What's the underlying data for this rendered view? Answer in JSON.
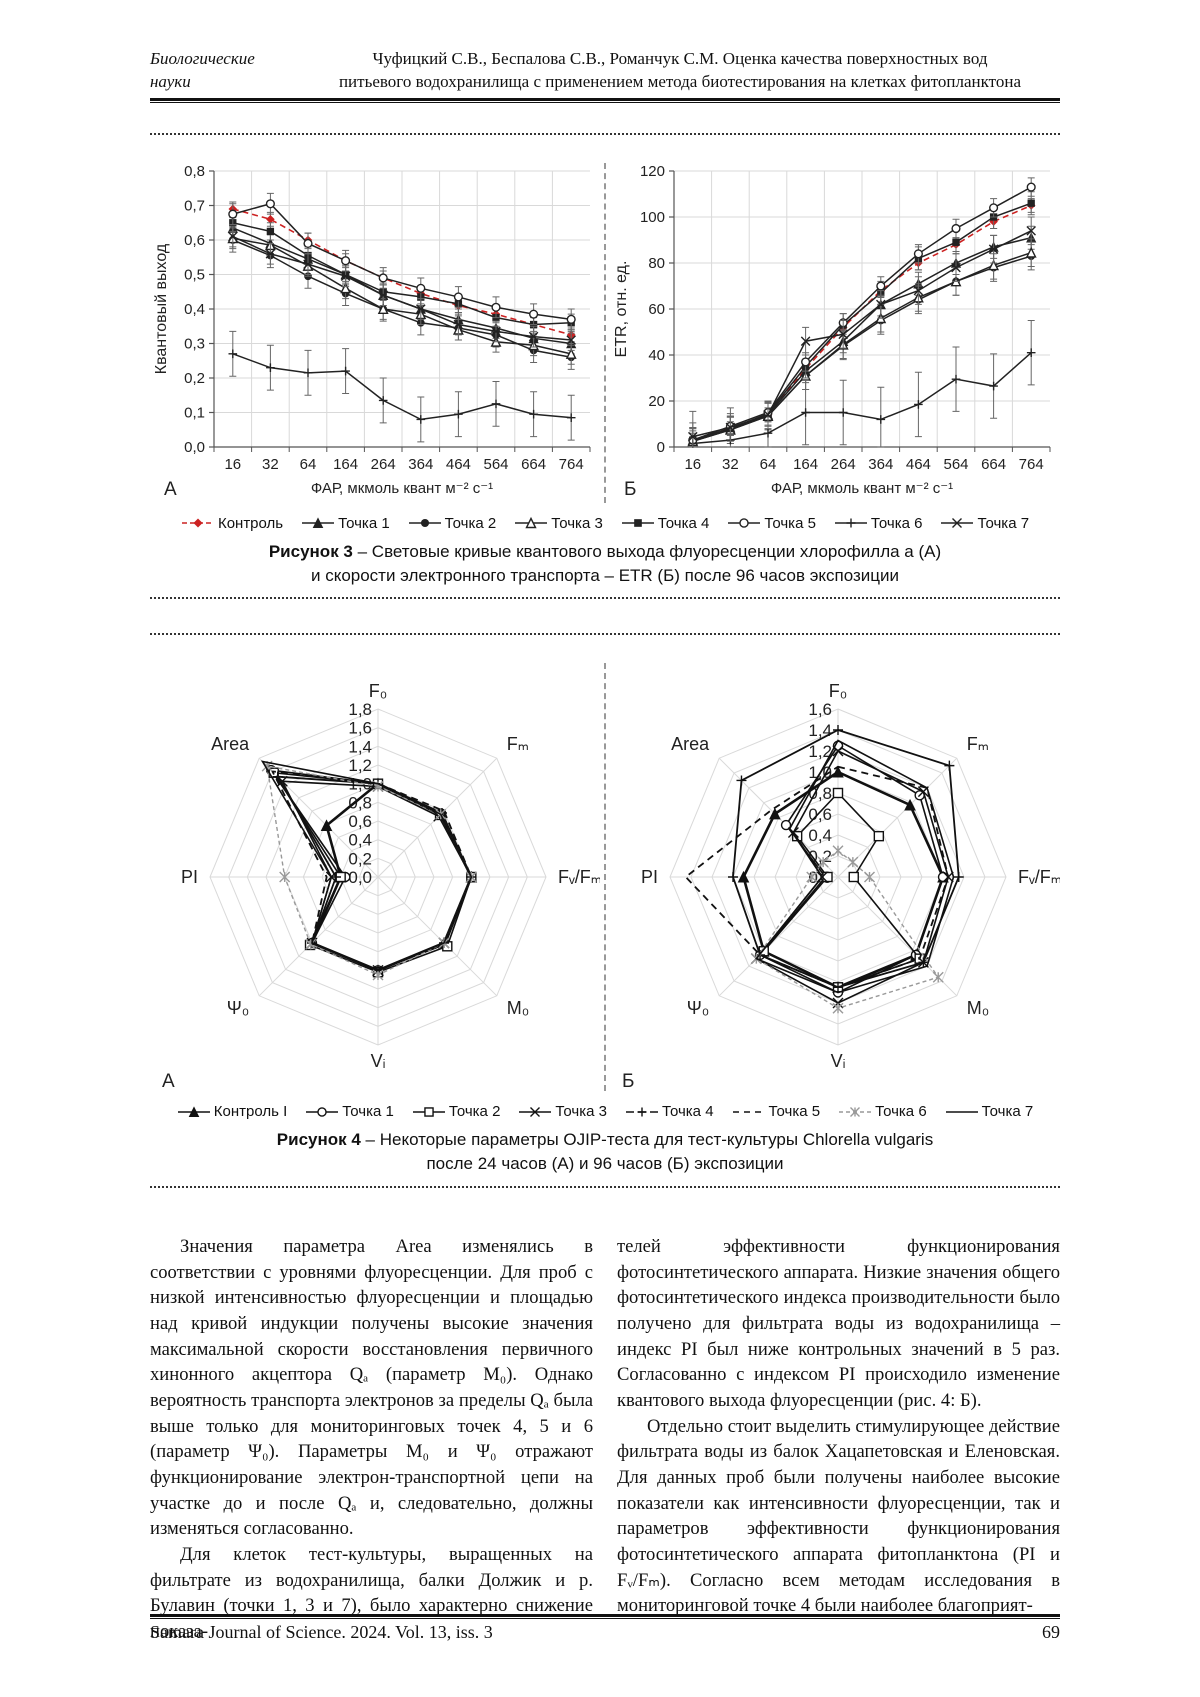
{
  "header": {
    "section_line1": "Биологические",
    "section_line2": "науки",
    "center_line1": "Чуфицкий С.В., Беспалова С.В., Романчук С.М. Оценка качества поверхностных вод",
    "center_line2": "питьевого водохранилища с применением метода биотестирования на клетках фитопланктона"
  },
  "colors": {
    "control_red": "#cc2222",
    "series_black": "#222222",
    "series_gray": "#999999",
    "grid": "#d9d9d9",
    "axis": "#808080"
  },
  "chart_data": [
    {
      "id": "fig3A",
      "type": "line",
      "panel_label": "А",
      "ylabel": "Квантовый выход",
      "xlabel": "ФАР, мкмоль квант м⁻² с⁻¹",
      "categories": [
        "16",
        "32",
        "64",
        "164",
        "264",
        "364",
        "464",
        "564",
        "664",
        "764"
      ],
      "ylim": [
        0,
        0.8
      ],
      "ytick_step": 0.1,
      "ytick_labels": [
        "0,0",
        "0,1",
        "0,2",
        "0,3",
        "0,4",
        "0,5",
        "0,6",
        "0,7",
        "0,8"
      ],
      "grid": true,
      "series": [
        {
          "name": "Контроль",
          "marker": "diamond-filled",
          "color": "#cc2222",
          "dash": "6 4",
          "width": 1.6,
          "err": 0.02,
          "values": [
            0.69,
            0.66,
            0.6,
            0.54,
            0.49,
            0.445,
            0.41,
            0.385,
            0.355,
            0.325
          ]
        },
        {
          "name": "Точка 1",
          "marker": "triangle-filled",
          "color": "#222222",
          "dash": "",
          "width": 1.5,
          "err": 0.03,
          "values": [
            0.635,
            0.59,
            0.545,
            0.5,
            0.44,
            0.4,
            0.37,
            0.345,
            0.315,
            0.3
          ]
        },
        {
          "name": "Точка 2",
          "marker": "circle-filled",
          "color": "#222222",
          "dash": "",
          "width": 1.5,
          "err": 0.035,
          "values": [
            0.6,
            0.555,
            0.495,
            0.445,
            0.4,
            0.36,
            0.345,
            0.325,
            0.28,
            0.26
          ]
        },
        {
          "name": "Точка 3",
          "marker": "triangle-open",
          "color": "#222222",
          "dash": "",
          "width": 1.5,
          "err": 0.03,
          "values": [
            0.605,
            0.585,
            0.525,
            0.46,
            0.4,
            0.385,
            0.34,
            0.305,
            0.295,
            0.27
          ]
        },
        {
          "name": "Точка 4",
          "marker": "square-filled",
          "color": "#222222",
          "dash": "",
          "width": 1.5,
          "err": 0.025,
          "values": [
            0.65,
            0.625,
            0.555,
            0.5,
            0.45,
            0.435,
            0.415,
            0.375,
            0.355,
            0.36
          ]
        },
        {
          "name": "Точка 5",
          "marker": "circle-open",
          "color": "#222222",
          "dash": "",
          "width": 1.5,
          "err": 0.03,
          "values": [
            0.675,
            0.705,
            0.59,
            0.54,
            0.49,
            0.46,
            0.435,
            0.405,
            0.385,
            0.37
          ]
        },
        {
          "name": "Точка 6",
          "marker": "plus",
          "color": "#222222",
          "dash": "",
          "width": 1.5,
          "err": 0.065,
          "values": [
            0.27,
            0.23,
            0.215,
            0.22,
            0.135,
            0.08,
            0.095,
            0.125,
            0.095,
            0.085
          ]
        },
        {
          "name": "Точка 7",
          "marker": "x",
          "color": "#222222",
          "dash": "",
          "width": 1.5,
          "err": 0.03,
          "values": [
            0.61,
            0.56,
            0.53,
            0.495,
            0.44,
            0.4,
            0.355,
            0.335,
            0.32,
            0.31
          ]
        }
      ]
    },
    {
      "id": "fig3B",
      "type": "line",
      "panel_label": "Б",
      "ylabel": "ETR, отн. ед.",
      "xlabel": "ФАР, мкмоль квант м⁻² с⁻¹",
      "categories": [
        "16",
        "32",
        "64",
        "164",
        "264",
        "364",
        "464",
        "564",
        "664",
        "764"
      ],
      "ylim": [
        0,
        120
      ],
      "ytick_step": 20,
      "ytick_labels": [
        "0",
        "20",
        "40",
        "60",
        "80",
        "100",
        "120"
      ],
      "grid": true,
      "series": [
        {
          "name": "Контроль",
          "marker": "diamond-filled",
          "color": "#cc2222",
          "dash": "6 4",
          "width": 1.6,
          "err": 3,
          "values": [
            3,
            8,
            14,
            34,
            52,
            68,
            80,
            88,
            98,
            105
          ]
        },
        {
          "name": "Точка 1",
          "marker": "triangle-filled",
          "color": "#222222",
          "dash": "",
          "width": 1.5,
          "err": 5,
          "values": [
            3,
            8,
            14,
            33,
            46,
            62,
            71,
            80,
            87,
            91
          ]
        },
        {
          "name": "Точка 2",
          "marker": "circle-filled",
          "color": "#222222",
          "dash": "",
          "width": 1.5,
          "err": 6,
          "values": [
            2.5,
            7.5,
            13.5,
            31,
            44,
            55,
            64,
            72,
            78,
            83
          ]
        },
        {
          "name": "Точка 3",
          "marker": "triangle-open",
          "color": "#222222",
          "dash": "",
          "width": 1.5,
          "err": 6,
          "values": [
            2.5,
            7.5,
            13.5,
            31,
            44.5,
            56,
            65,
            72,
            79,
            84.5
          ]
        },
        {
          "name": "Точка 4",
          "marker": "square-filled",
          "color": "#222222",
          "dash": "",
          "width": 1.5,
          "err": 5,
          "values": [
            3,
            8,
            14.5,
            35,
            53,
            67,
            82,
            89,
            100,
            106
          ]
        },
        {
          "name": "Точка 5",
          "marker": "circle-open",
          "color": "#222222",
          "dash": "",
          "width": 1.5,
          "err": 4,
          "values": [
            3,
            9,
            15,
            37,
            54,
            70,
            84,
            95,
            104,
            113
          ]
        },
        {
          "name": "Точка 6",
          "marker": "plus",
          "color": "#222222",
          "dash": "",
          "width": 1.5,
          "err": 14,
          "values": [
            1.5,
            3,
            6,
            15,
            15,
            12,
            18.5,
            29.5,
            26.5,
            41
          ]
        },
        {
          "name": "Точка 7",
          "marker": "x",
          "color": "#222222",
          "dash": "",
          "width": 1.5,
          "err": 6,
          "values": [
            4.5,
            8.5,
            14,
            46,
            49,
            62,
            68,
            78,
            86,
            94
          ]
        }
      ]
    },
    {
      "id": "fig4A",
      "type": "radar",
      "panel_label": "А",
      "axes": [
        "F₀",
        "Fₘ",
        "Fᵥ/Fₘ",
        "M₀",
        "Vᵢ",
        "Ψ₀",
        "PI",
        "Area"
      ],
      "max": 1.8,
      "tick_step": 0.2,
      "tick_labels": [
        "1,8",
        "1,6",
        "1,4",
        "1,2",
        "1,0",
        "0,8",
        "0,6",
        "0,4",
        "0,2",
        "0,0"
      ],
      "series": [
        {
          "name": "Контроль I",
          "marker": "triangle-filled",
          "color": "#111111",
          "dash": "",
          "width": 2.6,
          "values": [
            1.0,
            0.95,
            1.0,
            1.0,
            1.0,
            1.0,
            0.4,
            0.78
          ]
        },
        {
          "name": "Точка 1",
          "marker": "circle-open",
          "color": "#111111",
          "dash": "",
          "width": 1.6,
          "values": [
            1.0,
            0.96,
            1.0,
            1.02,
            1.0,
            1.0,
            0.35,
            1.62
          ]
        },
        {
          "name": "Точка 2",
          "marker": "square-open",
          "color": "#111111",
          "dash": "",
          "width": 1.6,
          "values": [
            1.0,
            0.94,
            1.0,
            1.05,
            1.02,
            1.03,
            0.4,
            1.58
          ]
        },
        {
          "name": "Точка 3",
          "marker": "x",
          "color": "#111111",
          "dash": "",
          "width": 1.6,
          "values": [
            0.97,
            0.92,
            1.0,
            1.0,
            1.0,
            1.0,
            0.5,
            1.45
          ]
        },
        {
          "name": "Точка 4",
          "marker": "plus",
          "color": "#111111",
          "dash": "",
          "width": 1.8,
          "values": [
            1.0,
            0.97,
            1.0,
            1.0,
            1.0,
            1.0,
            0.45,
            1.52
          ]
        },
        {
          "name": "Точка 5",
          "marker": "none",
          "color": "#111111",
          "dash": "7 5",
          "width": 1.8,
          "values": [
            1.0,
            1.0,
            1.0,
            1.0,
            1.0,
            1.0,
            0.55,
            1.6
          ]
        },
        {
          "name": "Точка 6",
          "marker": "star",
          "color": "#999999",
          "dash": "4 3",
          "width": 1.4,
          "values": [
            0.97,
            0.95,
            1.0,
            1.0,
            1.05,
            1.02,
            1.0,
            1.68
          ]
        },
        {
          "name": "Точка 7",
          "marker": "none",
          "color": "#111111",
          "dash": "",
          "width": 1.6,
          "values": [
            1.0,
            0.95,
            1.0,
            1.0,
            1.0,
            1.0,
            0.5,
            1.75
          ]
        }
      ]
    },
    {
      "id": "fig4B",
      "type": "radar",
      "panel_label": "Б",
      "axes": [
        "F₀",
        "Fₘ",
        "Fᵥ/Fₘ",
        "M₀",
        "Vᵢ",
        "Ψ₀",
        "PI",
        "Area"
      ],
      "max": 1.6,
      "tick_step": 0.2,
      "tick_labels": [
        "1,6",
        "1,4",
        "1,2",
        "1,0",
        "0,8",
        "0,6",
        "0,4",
        "0,2",
        "0,0"
      ],
      "series": [
        {
          "name": "Контроль I",
          "marker": "triangle-filled",
          "color": "#111111",
          "dash": "",
          "width": 2.6,
          "values": [
            1.0,
            0.97,
            1.0,
            1.05,
            1.05,
            1.0,
            0.9,
            0.85
          ]
        },
        {
          "name": "Точка 1",
          "marker": "circle-open",
          "color": "#111111",
          "dash": "",
          "width": 1.6,
          "values": [
            1.25,
            1.1,
            1.0,
            1.05,
            1.1,
            1.05,
            0.12,
            0.7
          ]
        },
        {
          "name": "Точка 2",
          "marker": "square-open",
          "color": "#111111",
          "dash": "",
          "width": 1.6,
          "values": [
            0.8,
            0.55,
            0.15,
            1.1,
            1.05,
            1.0,
            0.1,
            0.55
          ]
        },
        {
          "name": "Точка 3",
          "marker": "x",
          "color": "#111111",
          "dash": "",
          "width": 1.6,
          "values": [
            1.2,
            1.15,
            1.05,
            1.15,
            1.2,
            1.1,
            0.15,
            0.6
          ]
        },
        {
          "name": "Точка 4",
          "marker": "plus",
          "color": "#111111",
          "dash": "",
          "width": 1.8,
          "values": [
            1.4,
            1.5,
            1.15,
            1.15,
            1.05,
            1.05,
            1.0,
            1.3
          ]
        },
        {
          "name": "Точка 5",
          "marker": "none",
          "color": "#111111",
          "dash": "7 5",
          "width": 1.8,
          "values": [
            1.05,
            1.2,
            1.05,
            1.1,
            1.05,
            1.05,
            1.45,
            0.9
          ]
        },
        {
          "name": "Точка 6",
          "marker": "star",
          "color": "#999999",
          "dash": "4 3",
          "width": 1.4,
          "values": [
            0.25,
            0.2,
            0.3,
            1.35,
            1.25,
            1.1,
            0.25,
            0.2
          ]
        },
        {
          "name": "Точка 7",
          "marker": "none",
          "color": "#111111",
          "dash": "",
          "width": 1.6,
          "values": [
            1.3,
            1.2,
            1.1,
            1.2,
            1.1,
            1.1,
            0.15,
            0.65
          ]
        }
      ]
    }
  ],
  "figure3": {
    "legend": [
      {
        "label": "Контроль",
        "marker": "diamond-filled",
        "color": "#cc2222",
        "dash": "5 3"
      },
      {
        "label": "Точка 1",
        "marker": "triangle-filled",
        "color": "#222222",
        "dash": ""
      },
      {
        "label": "Точка 2",
        "marker": "circle-filled",
        "color": "#222222",
        "dash": ""
      },
      {
        "label": "Точка 3",
        "marker": "triangle-open",
        "color": "#222222",
        "dash": ""
      },
      {
        "label": "Точка 4",
        "marker": "square-filled",
        "color": "#222222",
        "dash": ""
      },
      {
        "label": "Точка 5",
        "marker": "circle-open",
        "color": "#222222",
        "dash": ""
      },
      {
        "label": "Точка 6",
        "marker": "plus",
        "color": "#222222",
        "dash": ""
      },
      {
        "label": "Точка 7",
        "marker": "x",
        "color": "#222222",
        "dash": ""
      }
    ],
    "caption_bold": "Рисунок 3",
    "caption_rest": " – Световые кривые квантового выхода флуоресценции хлорофилла a (А)",
    "caption_line2": "и скорости электронного транспорта – ETR (Б) после 96 часов экспозиции"
  },
  "figure4": {
    "legend": [
      {
        "label": "Контроль I",
        "marker": "triangle-filled",
        "color": "#111111",
        "dash": ""
      },
      {
        "label": "Точка 1",
        "marker": "circle-open",
        "color": "#111111",
        "dash": ""
      },
      {
        "label": "Точка 2",
        "marker": "square-open",
        "color": "#111111",
        "dash": ""
      },
      {
        "label": "Точка 3",
        "marker": "x",
        "color": "#111111",
        "dash": ""
      },
      {
        "label": "Точка 4",
        "marker": "plus",
        "color": "#111111",
        "dash": "8 4"
      },
      {
        "label": "Точка 5",
        "marker": "none",
        "color": "#111111",
        "dash": "6 5"
      },
      {
        "label": "Точка 6",
        "marker": "star",
        "color": "#999999",
        "dash": "4 3"
      },
      {
        "label": "Точка 7",
        "marker": "none",
        "color": "#111111",
        "dash": ""
      }
    ],
    "caption_bold": "Рисунок 4",
    "caption_rest": " – Некоторые параметры OJIP-теста для тест-культуры Chlorella vulgaris",
    "caption_line2": "после 24 часов (А) и 96 часов (Б) экспозиции"
  },
  "body": {
    "left_col": [
      "Значения параметра Area изменялись в соответствии с уровнями флуоресценции. Для проб с низкой интенсивностью флуоресценции и площадью над кривой индукции получены высокие значения максимальной скорости восстановления первичного хинонного акцептора Qₐ (параметр M₀). Однако вероятность транспорта электронов за пределы Qₐ была выше только для мониторинговых точек 4, 5 и 6 (параметр Ψ₀). Параметры M₀ и Ψ₀ отражают функционирование электрон-транспортной цепи на участке до и после Qₐ и, следовательно, должны изменяться согласованно.",
      "Для клеток тест-культуры, выращенных на фильтрате из водохранилища, балки Должик и р. Булавин (точки 1, 3 и 7), было характерно снижение показа-"
    ],
    "right_col": [
      "телей эффективности функционирования фотосинтетического аппарата. Низкие значения общего фотосинтетического индекса производительности было получено для фильтрата воды из водохранилища – индекс PI был ниже контрольных значений в 5 раз. Согласованно с индексом PI происходило изменение квантового выхода флуоресценции (рис. 4: Б).",
      "Отдельно стоит выделить стимулирующее действие фильтрата воды из балок Хацапетовская и Еленовская. Для данных проб были получены наиболее высокие показатели как интенсивности флуоресценции, так и параметров эффективности функционирования фотосинтетического аппарата фитопланктона (PI и Fᵥ/Fₘ). Согласно всем методам исследования в мониторинговой точке 4 были наиболее благоприят-"
    ]
  },
  "footer": {
    "journal": "Samara Journal of Science. 2024. Vol. 13, iss. 3",
    "page_number": "69"
  }
}
